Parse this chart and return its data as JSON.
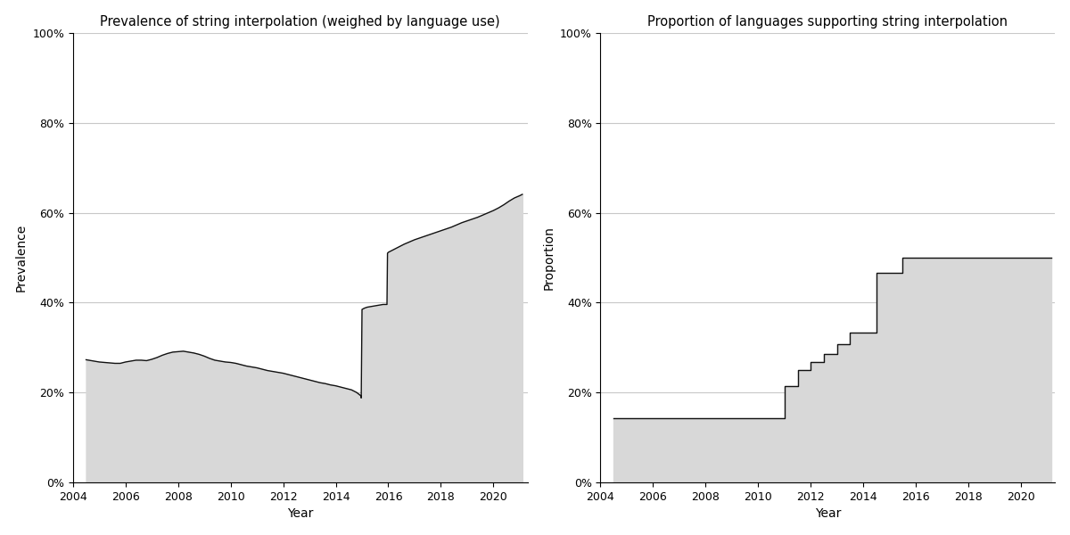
{
  "left_title": "Prevalence of string interpolation (weighed by language use)",
  "right_title": "Proportion of languages supporting string interpolation",
  "left_ylabel": "Prevalence",
  "right_ylabel": "Proportion",
  "xlabel": "Year",
  "yticks": [
    0,
    0.2,
    0.4,
    0.6,
    0.8,
    1.0
  ],
  "fill_color": "#d8d8d8",
  "line_color": "#111111",
  "grid_color": "#c8c8c8",
  "left_x": [
    2004.5,
    2004.6,
    2004.8,
    2005.0,
    2005.2,
    2005.4,
    2005.6,
    2005.8,
    2006.0,
    2006.2,
    2006.4,
    2006.6,
    2006.8,
    2007.0,
    2007.2,
    2007.4,
    2007.6,
    2007.8,
    2008.0,
    2008.2,
    2008.4,
    2008.6,
    2008.8,
    2009.0,
    2009.2,
    2009.4,
    2009.6,
    2009.8,
    2010.0,
    2010.2,
    2010.4,
    2010.6,
    2010.8,
    2011.0,
    2011.2,
    2011.4,
    2011.6,
    2011.8,
    2012.0,
    2012.2,
    2012.4,
    2012.6,
    2012.8,
    2013.0,
    2013.2,
    2013.4,
    2013.6,
    2013.8,
    2014.0,
    2014.2,
    2014.4,
    2014.6,
    2014.8,
    2014.95,
    2014.97,
    2015.0,
    2015.1,
    2015.2,
    2015.4,
    2015.6,
    2015.8,
    2015.95,
    2015.97,
    2016.0,
    2016.2,
    2016.4,
    2016.6,
    2016.8,
    2017.0,
    2017.2,
    2017.4,
    2017.6,
    2017.8,
    2018.0,
    2018.2,
    2018.4,
    2018.6,
    2018.8,
    2019.0,
    2019.2,
    2019.4,
    2019.6,
    2019.8,
    2020.0,
    2020.2,
    2020.4,
    2020.6,
    2020.8,
    2021.0,
    2021.1
  ],
  "left_y": [
    0.273,
    0.272,
    0.27,
    0.268,
    0.267,
    0.266,
    0.265,
    0.265,
    0.268,
    0.27,
    0.272,
    0.272,
    0.271,
    0.274,
    0.278,
    0.283,
    0.287,
    0.29,
    0.291,
    0.292,
    0.29,
    0.288,
    0.285,
    0.281,
    0.276,
    0.272,
    0.27,
    0.268,
    0.267,
    0.265,
    0.262,
    0.259,
    0.257,
    0.255,
    0.252,
    0.249,
    0.247,
    0.245,
    0.243,
    0.24,
    0.237,
    0.234,
    0.231,
    0.228,
    0.225,
    0.222,
    0.22,
    0.217,
    0.215,
    0.212,
    0.209,
    0.206,
    0.2,
    0.193,
    0.188,
    0.385,
    0.388,
    0.39,
    0.392,
    0.394,
    0.396,
    0.396,
    0.51,
    0.512,
    0.518,
    0.524,
    0.53,
    0.535,
    0.54,
    0.544,
    0.548,
    0.552,
    0.556,
    0.56,
    0.564,
    0.568,
    0.573,
    0.578,
    0.582,
    0.586,
    0.59,
    0.595,
    0.6,
    0.605,
    0.611,
    0.618,
    0.626,
    0.633,
    0.638,
    0.641
  ],
  "right_x": [
    2004.5,
    2011.0,
    2011.0,
    2011.5,
    2011.5,
    2012.0,
    2012.0,
    2012.5,
    2012.5,
    2013.0,
    2013.0,
    2013.5,
    2013.5,
    2014.5,
    2014.5,
    2015.5,
    2015.5,
    2016.0,
    2016.0,
    2021.15
  ],
  "right_y": [
    0.143,
    0.143,
    0.214,
    0.214,
    0.25,
    0.25,
    0.267,
    0.267,
    0.286,
    0.286,
    0.308,
    0.308,
    0.333,
    0.333,
    0.467,
    0.467,
    0.5,
    0.5,
    0.5,
    0.5
  ],
  "xmin": 2004,
  "xmax": 2021.3,
  "xticks": [
    2004,
    2006,
    2008,
    2010,
    2012,
    2014,
    2016,
    2018,
    2020
  ]
}
